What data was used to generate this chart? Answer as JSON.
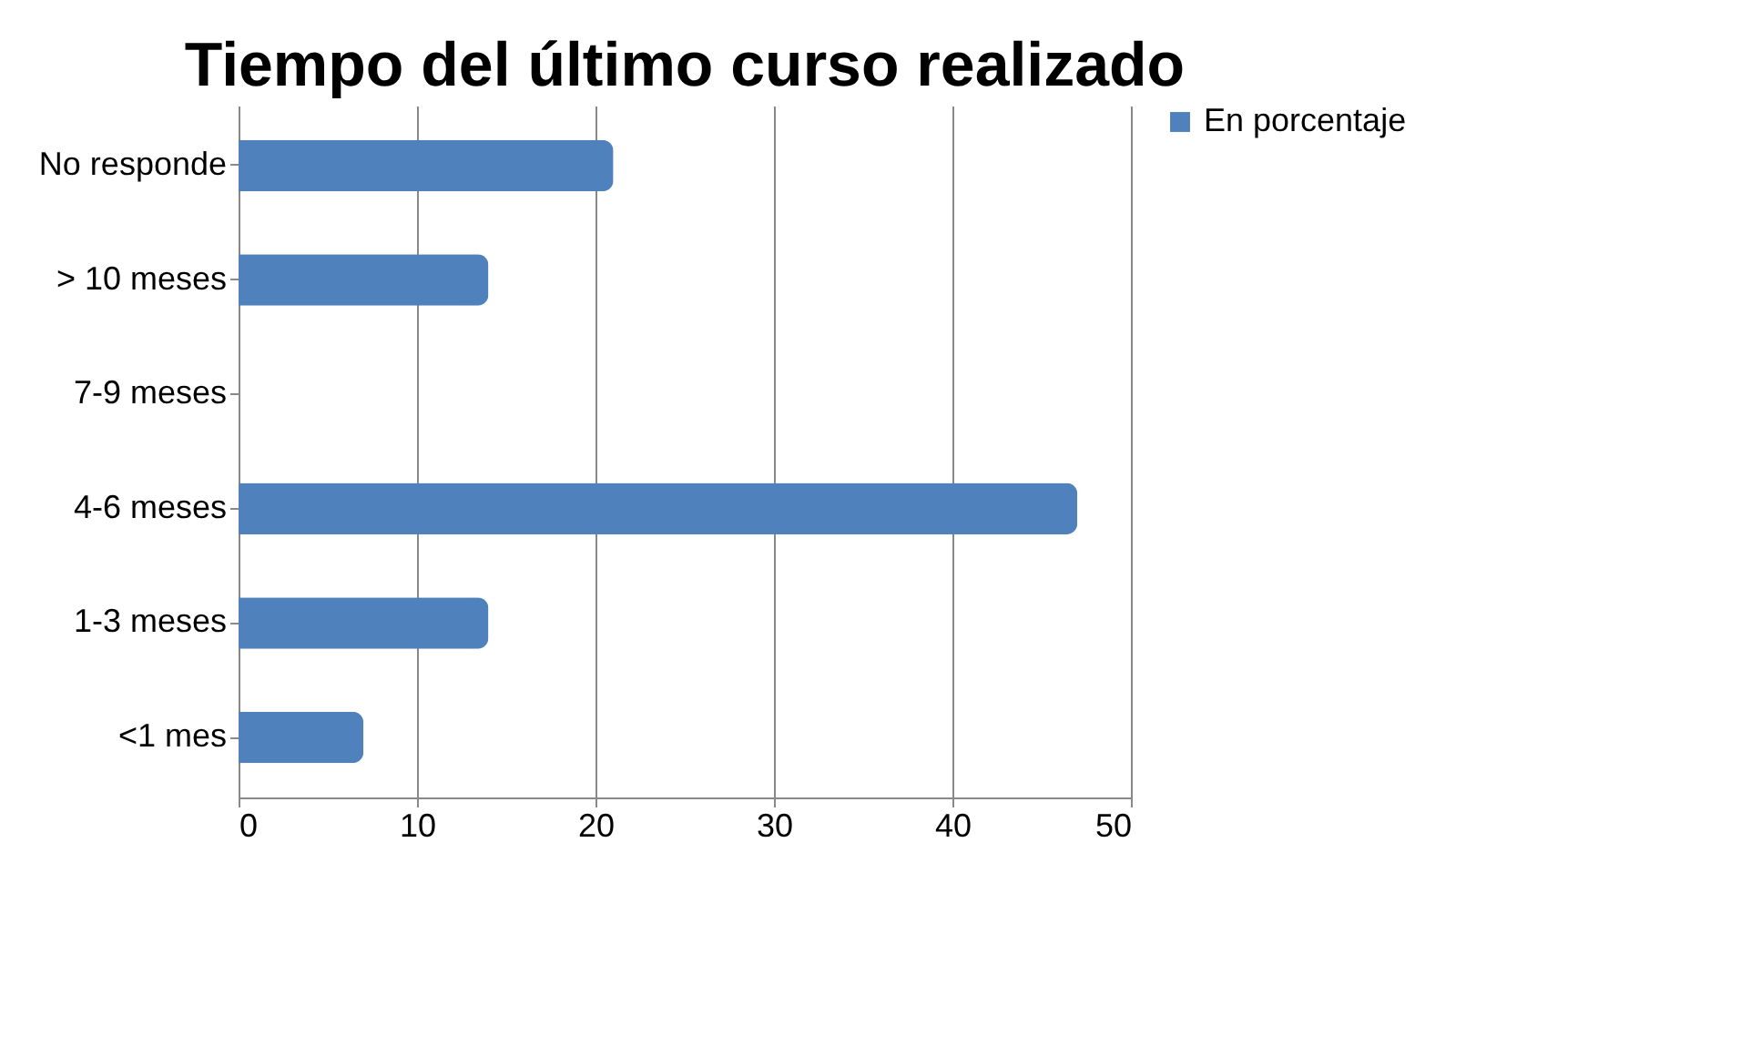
{
  "chart_data": {
    "type": "bar",
    "orientation": "horizontal",
    "title": "Tiempo del último curso realizado",
    "categories": [
      "No responde",
      "> 10 meses",
      "7-9 meses",
      "4-6 meses",
      "1-3 meses",
      "<1 mes"
    ],
    "series": [
      {
        "name": "En porcentaje",
        "color": "#4f81bd",
        "values": [
          21,
          14,
          0,
          47,
          14,
          7
        ]
      }
    ],
    "xlim": [
      0,
      50
    ],
    "xticks": [
      0,
      10,
      20,
      30,
      40,
      50
    ],
    "grid": "x",
    "legend": "right"
  }
}
